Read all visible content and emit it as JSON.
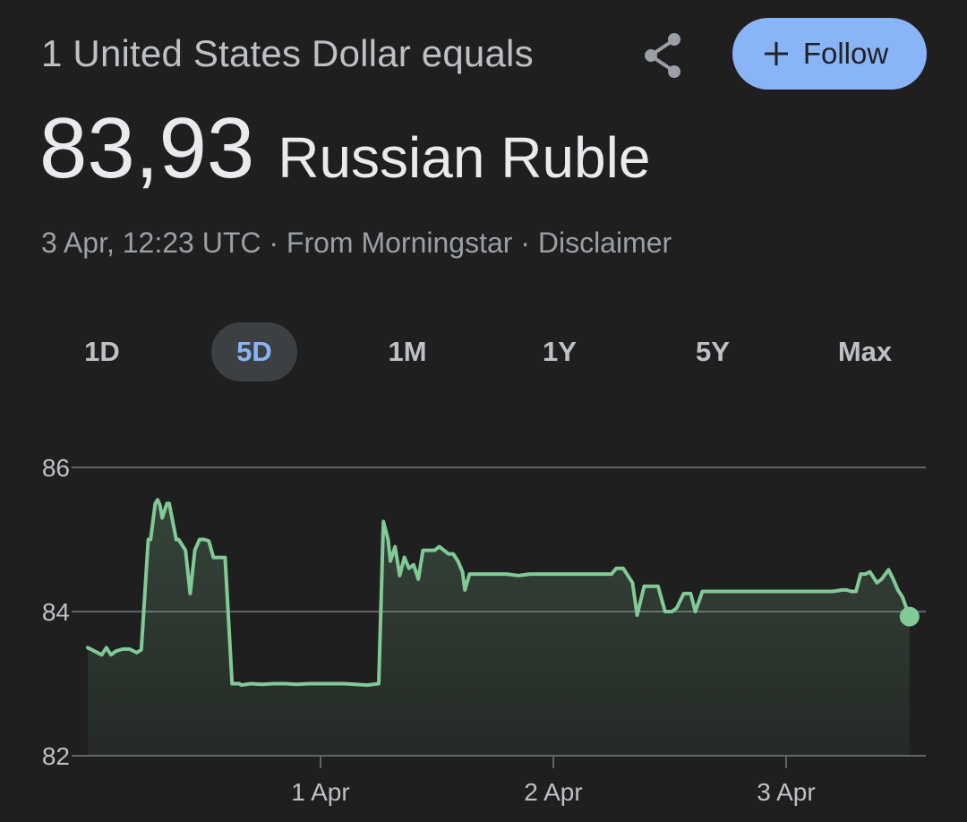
{
  "header": {
    "subtitle": "1 United States Dollar equals",
    "follow_label": "Follow"
  },
  "rate": {
    "value": "83,93",
    "currency": "Russian Ruble"
  },
  "meta": {
    "timestamp": "3 Apr, 12:23 UTC",
    "separator": "·",
    "source": "From Morningstar",
    "disclaimer": "Disclaimer"
  },
  "tabs": [
    {
      "label": "1D",
      "active": false
    },
    {
      "label": "5D",
      "active": true
    },
    {
      "label": "1M",
      "active": false
    },
    {
      "label": "1Y",
      "active": false
    },
    {
      "label": "5Y",
      "active": false
    },
    {
      "label": "Max",
      "active": false
    }
  ],
  "colors": {
    "background": "#1f1f1f",
    "line": "#81c995",
    "accent": "#8ab4f8",
    "grid": "#5f6368"
  },
  "icons": {
    "share": "share-icon",
    "follow": "plus-icon"
  },
  "chart_data": {
    "type": "line",
    "title": "",
    "xlabel": "",
    "ylabel": "",
    "ylim": [
      82,
      86
    ],
    "yticks": [
      82,
      84,
      86
    ],
    "grid": true,
    "x_ticks": [
      {
        "x": 1.0,
        "label": "1 Apr"
      },
      {
        "x": 2.0,
        "label": "2 Apr"
      },
      {
        "x": 3.0,
        "label": "3 Apr"
      }
    ],
    "x_unit": "days, 0 = start of range, 1 = 1 Apr",
    "xlim": [
      0.0,
      3.55
    ],
    "series": [
      {
        "name": "",
        "x": [
          0.0,
          0.03,
          0.06,
          0.08,
          0.1,
          0.12,
          0.15,
          0.18,
          0.21,
          0.23,
          0.26,
          0.27,
          0.29,
          0.3,
          0.31,
          0.32,
          0.34,
          0.35,
          0.38,
          0.39,
          0.42,
          0.44,
          0.46,
          0.48,
          0.5,
          0.52,
          0.54,
          0.56,
          0.58,
          0.59,
          0.62,
          0.65,
          0.66,
          0.7,
          0.75,
          0.8,
          0.85,
          0.9,
          0.95,
          1.0,
          1.05,
          1.1,
          1.15,
          1.2,
          1.25,
          1.27,
          1.29,
          1.3,
          1.32,
          1.34,
          1.36,
          1.38,
          1.4,
          1.42,
          1.44,
          1.45,
          1.47,
          1.49,
          1.51,
          1.53,
          1.55,
          1.57,
          1.59,
          1.61,
          1.62,
          1.64,
          1.66,
          1.7,
          1.75,
          1.8,
          1.85,
          1.9,
          1.95,
          2.0,
          2.05,
          2.1,
          2.15,
          2.2,
          2.25,
          2.27,
          2.3,
          2.34,
          2.36,
          2.39,
          2.42,
          2.45,
          2.48,
          2.51,
          2.53,
          2.56,
          2.59,
          2.61,
          2.64,
          2.67,
          2.7,
          2.8,
          2.9,
          3.0,
          3.1,
          3.2,
          3.24,
          3.26,
          3.28,
          3.3,
          3.32,
          3.34,
          3.36,
          3.39,
          3.41,
          3.44,
          3.46,
          3.48,
          3.5,
          3.53
        ],
        "y": [
          83.5,
          83.45,
          83.4,
          83.5,
          83.4,
          83.45,
          83.48,
          83.48,
          83.43,
          83.47,
          85.0,
          85.0,
          85.5,
          85.55,
          85.48,
          85.3,
          85.5,
          85.5,
          85.0,
          85.0,
          84.85,
          84.25,
          84.85,
          85.0,
          85.0,
          84.98,
          84.75,
          84.75,
          84.75,
          84.75,
          83.0,
          83.0,
          82.98,
          83.0,
          82.99,
          83.0,
          83.0,
          82.99,
          83.0,
          83.0,
          83.0,
          83.0,
          82.99,
          82.98,
          83.0,
          85.25,
          85.0,
          84.7,
          84.9,
          84.5,
          84.75,
          84.6,
          84.65,
          84.45,
          84.85,
          84.85,
          84.85,
          84.85,
          84.9,
          84.85,
          84.8,
          84.8,
          84.7,
          84.55,
          84.3,
          84.52,
          84.52,
          84.52,
          84.52,
          84.52,
          84.5,
          84.52,
          84.52,
          84.52,
          84.52,
          84.52,
          84.52,
          84.52,
          84.52,
          84.6,
          84.6,
          84.4,
          83.95,
          84.35,
          84.35,
          84.35,
          84.0,
          84.0,
          84.05,
          84.25,
          84.25,
          84.0,
          84.28,
          84.28,
          84.28,
          84.28,
          84.28,
          84.28,
          84.28,
          84.28,
          84.3,
          84.3,
          84.28,
          84.28,
          84.52,
          84.52,
          84.55,
          84.4,
          84.45,
          84.58,
          84.45,
          84.3,
          84.2,
          83.93
        ]
      }
    ]
  }
}
